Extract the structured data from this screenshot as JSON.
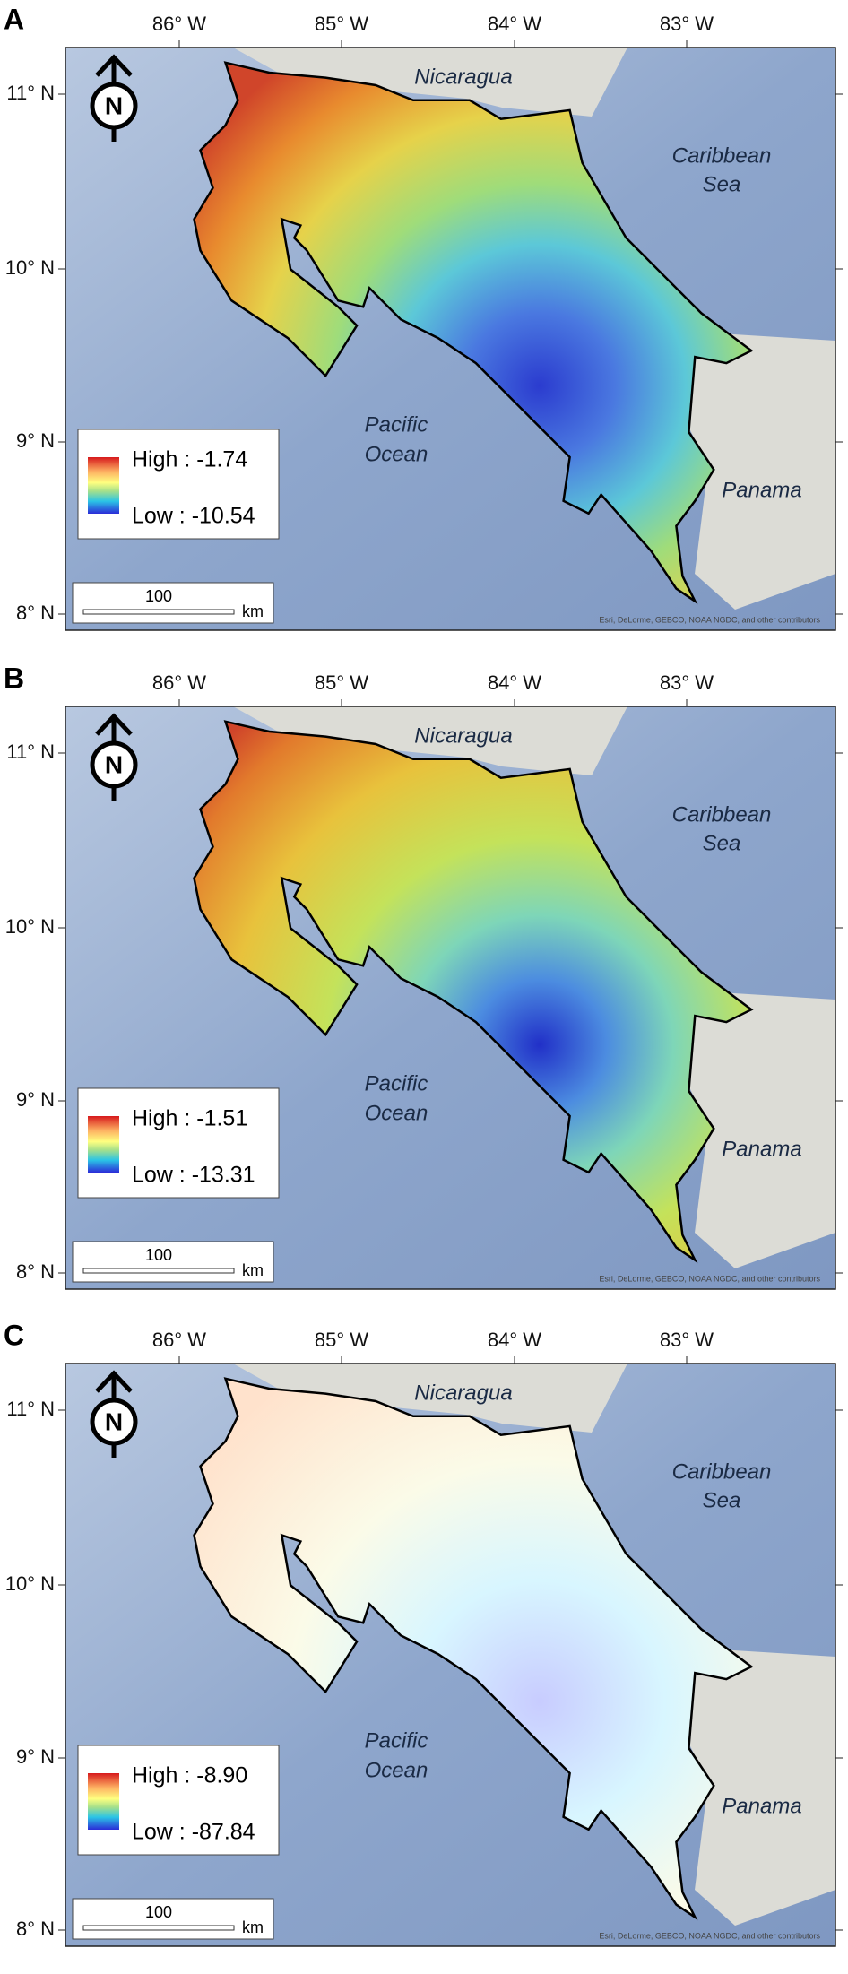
{
  "panels": [
    {
      "label": "A",
      "legend": {
        "high": "High : -1.74",
        "low": "Low : -10.54"
      },
      "style": "surface"
    },
    {
      "label": "B",
      "legend": {
        "high": "High : -1.51",
        "low": "Low : -13.31"
      },
      "style": "surface"
    },
    {
      "label": "C",
      "legend": {
        "high": "High : -8.90",
        "low": "Low : -87.84"
      },
      "style": "streams"
    }
  ],
  "longitude_labels": [
    "86° W",
    "85° W",
    "84° W",
    "83° W"
  ],
  "latitude_labels": [
    "11° N",
    "10° N",
    "9° N",
    "8° N"
  ],
  "places": {
    "nicaragua": "Nicaragua",
    "caribbean_sea": [
      "Caribbean",
      "Sea"
    ],
    "pacific_ocean": [
      "Pacific",
      "Ocean"
    ],
    "panama": "Panama"
  },
  "north_label": "N",
  "scale_bar": {
    "distance": "100",
    "unit": "km"
  },
  "attribution": "Esri, DeLorme, GEBCO, NOAA NGDC, and other contributors"
}
